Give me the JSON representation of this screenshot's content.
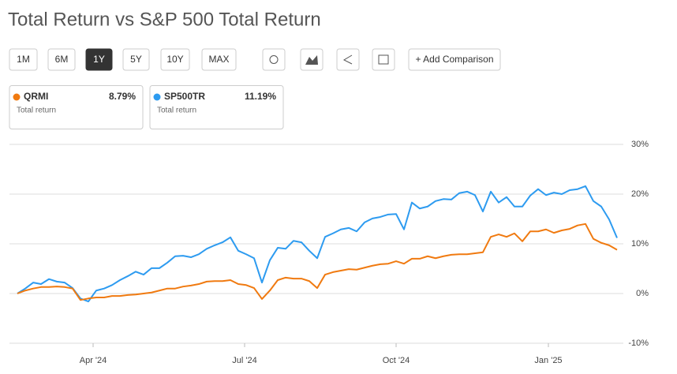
{
  "title": "Total Return vs S&P 500 Total Return",
  "buttons": [
    "1M",
    "6M",
    "1Y",
    "5Y",
    "10Y",
    "MAX"
  ],
  "active_button": 2,
  "add_comparison": "+ Add Comparison",
  "total_return_label": "Total return",
  "chart_data": {
    "type": "line",
    "series": [
      {
        "name": "QRMI",
        "color": "#f07a10",
        "return": 8.79,
        "return_label": "8.79%",
        "values": [
          0,
          0.6,
          1,
          1.3,
          1.3,
          1.4,
          1.3,
          1,
          -1.3,
          -1,
          -0.8,
          -0.8,
          -0.5,
          -0.5,
          -0.3,
          -0.2,
          0,
          0.2,
          0.6,
          1,
          1,
          1.4,
          1.6,
          1.9,
          2.4,
          2.5,
          2.5,
          2.7,
          1.9,
          1.7,
          1.1,
          -1.1,
          0.6,
          2.7,
          3.2,
          3,
          3,
          2.5,
          1.1,
          3.8,
          4.3,
          4.6,
          4.9,
          4.8,
          5.2,
          5.6,
          5.9,
          6,
          6.5,
          6,
          7,
          7,
          7.5,
          7.1,
          7.5,
          7.8,
          7.9,
          7.9,
          8.1,
          8.3,
          11.4,
          11.9,
          11.4,
          12.1,
          10.5,
          12.5,
          12.5,
          12.9,
          12.2,
          12.7,
          13,
          13.7,
          14,
          11,
          10.2,
          9.7,
          8.79
        ]
      },
      {
        "name": "SP500TR",
        "color": "#2d9bf0",
        "return": 11.19,
        "return_label": "11.19%",
        "values": [
          0,
          1,
          2.2,
          1.9,
          2.9,
          2.4,
          2.2,
          1.1,
          -1,
          -1.6,
          0.6,
          1,
          1.7,
          2.7,
          3.5,
          4.4,
          3.8,
          5.1,
          5.1,
          6.2,
          7.5,
          7.6,
          7.3,
          7.9,
          9,
          9.7,
          10.3,
          11.3,
          8.6,
          7.9,
          7.1,
          2.2,
          6.7,
          9.2,
          9,
          10.6,
          10.3,
          8.6,
          7.1,
          11.4,
          12.1,
          12.9,
          13.2,
          12.5,
          14.3,
          15.1,
          15.4,
          15.9,
          16,
          12.9,
          18.3,
          17.1,
          17.5,
          18.6,
          19,
          18.9,
          20.2,
          20.5,
          19.8,
          16.5,
          20.5,
          18.3,
          19.4,
          17.5,
          17.5,
          19.7,
          21,
          19.8,
          20.3,
          20,
          20.8,
          21,
          21.6,
          18.6,
          17.5,
          14.9,
          11.19
        ]
      }
    ],
    "xlim": [
      0,
      76
    ],
    "xticks": [
      {
        "value": 9.6,
        "label": "Apr '24"
      },
      {
        "value": 28.8,
        "label": "Jul '24"
      },
      {
        "value": 48,
        "label": "Oct '24"
      },
      {
        "value": 67.3,
        "label": "Jan '25"
      }
    ],
    "ylim": [
      -10,
      30
    ],
    "yticks": [
      {
        "value": -10,
        "label": "-10%"
      },
      {
        "value": 0,
        "label": "0%"
      },
      {
        "value": 10,
        "label": "10%"
      },
      {
        "value": 20,
        "label": "20%"
      },
      {
        "value": 30,
        "label": "30%"
      }
    ],
    "grid": true
  }
}
